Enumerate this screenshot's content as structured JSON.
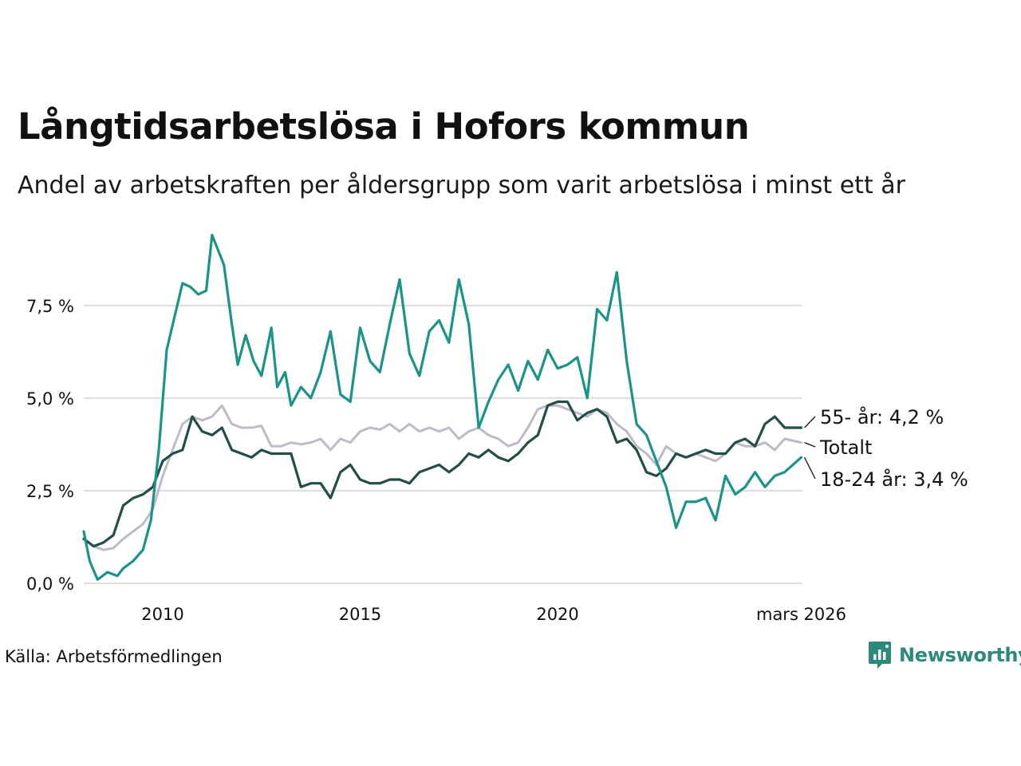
{
  "title": "Långtidsarbetslösa i Hofors kommun",
  "subtitle": "Andel av arbetskraften per åldersgrupp som varit arbetslösa i minst ett år",
  "source": "Källa: Arbetsförmedlingen",
  "brand": {
    "name": "Newsworthy",
    "icon": "newsworthy-logo-icon",
    "color": "#2c8a7a"
  },
  "chart_data": {
    "type": "line",
    "title": "Långtidsarbetslösa i Hofors kommun",
    "xlabel": "",
    "ylabel": "",
    "x_range": [
      2008.0,
      2026.2
    ],
    "ylim": [
      0,
      9.5
    ],
    "y_ticks": [
      0,
      2.5,
      5,
      7.5
    ],
    "y_tick_labels": [
      "0,0 %",
      "2,5 %",
      "5,0 %",
      "7,5 %"
    ],
    "x_ticks": [
      2010,
      2015,
      2020,
      2026.17
    ],
    "x_tick_labels": [
      "2010",
      "2015",
      "2020",
      "mars 2026"
    ],
    "grid": true,
    "series": [
      {
        "name": "Totalt",
        "label": "Totalt",
        "color": "#bdbbc8",
        "points": [
          [
            2008.0,
            1.2
          ],
          [
            2008.25,
            1.0
          ],
          [
            2008.5,
            0.9
          ],
          [
            2008.75,
            0.95
          ],
          [
            2009.0,
            1.2
          ],
          [
            2009.25,
            1.4
          ],
          [
            2009.5,
            1.6
          ],
          [
            2009.75,
            2.0
          ],
          [
            2010.0,
            2.9
          ],
          [
            2010.25,
            3.6
          ],
          [
            2010.5,
            4.3
          ],
          [
            2010.75,
            4.5
          ],
          [
            2011.0,
            4.4
          ],
          [
            2011.25,
            4.5
          ],
          [
            2011.5,
            4.8
          ],
          [
            2011.75,
            4.3
          ],
          [
            2012.0,
            4.2
          ],
          [
            2012.25,
            4.2
          ],
          [
            2012.5,
            4.25
          ],
          [
            2012.75,
            3.7
          ],
          [
            2013.0,
            3.7
          ],
          [
            2013.25,
            3.8
          ],
          [
            2013.5,
            3.75
          ],
          [
            2013.75,
            3.8
          ],
          [
            2014.0,
            3.9
          ],
          [
            2014.25,
            3.6
          ],
          [
            2014.5,
            3.9
          ],
          [
            2014.75,
            3.8
          ],
          [
            2015.0,
            4.1
          ],
          [
            2015.25,
            4.2
          ],
          [
            2015.5,
            4.15
          ],
          [
            2015.75,
            4.3
          ],
          [
            2016.0,
            4.1
          ],
          [
            2016.25,
            4.3
          ],
          [
            2016.5,
            4.1
          ],
          [
            2016.75,
            4.2
          ],
          [
            2017.0,
            4.1
          ],
          [
            2017.25,
            4.2
          ],
          [
            2017.5,
            3.9
          ],
          [
            2017.75,
            4.1
          ],
          [
            2018.0,
            4.2
          ],
          [
            2018.25,
            4.0
          ],
          [
            2018.5,
            3.9
          ],
          [
            2018.75,
            3.7
          ],
          [
            2019.0,
            3.8
          ],
          [
            2019.25,
            4.2
          ],
          [
            2019.5,
            4.7
          ],
          [
            2019.75,
            4.8
          ],
          [
            2020.0,
            4.8
          ],
          [
            2020.25,
            4.7
          ],
          [
            2020.5,
            4.6
          ],
          [
            2020.75,
            4.5
          ],
          [
            2021.0,
            4.7
          ],
          [
            2021.25,
            4.6
          ],
          [
            2021.5,
            4.3
          ],
          [
            2021.75,
            4.1
          ],
          [
            2022.0,
            3.7
          ],
          [
            2022.25,
            3.5
          ],
          [
            2022.5,
            3.2
          ],
          [
            2022.75,
            3.7
          ],
          [
            2023.0,
            3.5
          ],
          [
            2023.25,
            3.4
          ],
          [
            2023.5,
            3.5
          ],
          [
            2023.75,
            3.4
          ],
          [
            2024.0,
            3.3
          ],
          [
            2024.25,
            3.5
          ],
          [
            2024.5,
            3.8
          ],
          [
            2024.75,
            3.7
          ],
          [
            2025.0,
            3.7
          ],
          [
            2025.25,
            3.8
          ],
          [
            2025.5,
            3.6
          ],
          [
            2025.75,
            3.9
          ],
          [
            2026.17,
            3.8
          ]
        ]
      },
      {
        "name": "55- år",
        "label": "55- år: 4,2 %",
        "color": "#234d47",
        "points": [
          [
            2008.0,
            1.2
          ],
          [
            2008.25,
            1.0
          ],
          [
            2008.5,
            1.1
          ],
          [
            2008.75,
            1.3
          ],
          [
            2009.0,
            2.1
          ],
          [
            2009.25,
            2.3
          ],
          [
            2009.5,
            2.4
          ],
          [
            2009.75,
            2.6
          ],
          [
            2010.0,
            3.3
          ],
          [
            2010.25,
            3.5
          ],
          [
            2010.5,
            3.6
          ],
          [
            2010.75,
            4.5
          ],
          [
            2011.0,
            4.1
          ],
          [
            2011.25,
            4.0
          ],
          [
            2011.5,
            4.2
          ],
          [
            2011.75,
            3.6
          ],
          [
            2012.0,
            3.5
          ],
          [
            2012.25,
            3.4
          ],
          [
            2012.5,
            3.6
          ],
          [
            2012.75,
            3.5
          ],
          [
            2013.0,
            3.5
          ],
          [
            2013.25,
            3.5
          ],
          [
            2013.5,
            2.6
          ],
          [
            2013.75,
            2.7
          ],
          [
            2014.0,
            2.7
          ],
          [
            2014.25,
            2.3
          ],
          [
            2014.5,
            3.0
          ],
          [
            2014.75,
            3.2
          ],
          [
            2015.0,
            2.8
          ],
          [
            2015.25,
            2.7
          ],
          [
            2015.5,
            2.7
          ],
          [
            2015.75,
            2.8
          ],
          [
            2016.0,
            2.8
          ],
          [
            2016.25,
            2.7
          ],
          [
            2016.5,
            3.0
          ],
          [
            2016.75,
            3.1
          ],
          [
            2017.0,
            3.2
          ],
          [
            2017.25,
            3.0
          ],
          [
            2017.5,
            3.2
          ],
          [
            2017.75,
            3.5
          ],
          [
            2018.0,
            3.4
          ],
          [
            2018.25,
            3.6
          ],
          [
            2018.5,
            3.4
          ],
          [
            2018.75,
            3.3
          ],
          [
            2019.0,
            3.5
          ],
          [
            2019.25,
            3.8
          ],
          [
            2019.5,
            4.0
          ],
          [
            2019.75,
            4.8
          ],
          [
            2020.0,
            4.9
          ],
          [
            2020.25,
            4.9
          ],
          [
            2020.5,
            4.4
          ],
          [
            2020.75,
            4.6
          ],
          [
            2021.0,
            4.7
          ],
          [
            2021.25,
            4.5
          ],
          [
            2021.5,
            3.8
          ],
          [
            2021.75,
            3.9
          ],
          [
            2022.0,
            3.6
          ],
          [
            2022.25,
            3.0
          ],
          [
            2022.5,
            2.9
          ],
          [
            2022.75,
            3.1
          ],
          [
            2023.0,
            3.5
          ],
          [
            2023.25,
            3.4
          ],
          [
            2023.5,
            3.5
          ],
          [
            2023.75,
            3.6
          ],
          [
            2024.0,
            3.5
          ],
          [
            2024.25,
            3.5
          ],
          [
            2024.5,
            3.8
          ],
          [
            2024.75,
            3.9
          ],
          [
            2025.0,
            3.7
          ],
          [
            2025.25,
            4.3
          ],
          [
            2025.5,
            4.5
          ],
          [
            2025.75,
            4.2
          ],
          [
            2026.17,
            4.2
          ]
        ]
      },
      {
        "name": "18-24 år",
        "label": "18-24 år: 3,4 %",
        "color": "#1a9487",
        "points": [
          [
            2008.0,
            1.4
          ],
          [
            2008.15,
            0.6
          ],
          [
            2008.35,
            0.1
          ],
          [
            2008.6,
            0.3
          ],
          [
            2008.85,
            0.2
          ],
          [
            2009.0,
            0.4
          ],
          [
            2009.25,
            0.6
          ],
          [
            2009.5,
            0.9
          ],
          [
            2009.7,
            1.7
          ],
          [
            2009.9,
            3.6
          ],
          [
            2010.1,
            6.3
          ],
          [
            2010.3,
            7.2
          ],
          [
            2010.5,
            8.1
          ],
          [
            2010.7,
            8.0
          ],
          [
            2010.9,
            7.8
          ],
          [
            2011.1,
            7.9
          ],
          [
            2011.25,
            9.4
          ],
          [
            2011.4,
            9.0
          ],
          [
            2011.55,
            8.6
          ],
          [
            2011.75,
            7.0
          ],
          [
            2011.9,
            5.9
          ],
          [
            2012.1,
            6.7
          ],
          [
            2012.3,
            6.0
          ],
          [
            2012.5,
            5.6
          ],
          [
            2012.75,
            6.9
          ],
          [
            2012.9,
            5.3
          ],
          [
            2013.1,
            5.7
          ],
          [
            2013.25,
            4.8
          ],
          [
            2013.5,
            5.3
          ],
          [
            2013.75,
            5.0
          ],
          [
            2014.0,
            5.7
          ],
          [
            2014.25,
            6.8
          ],
          [
            2014.5,
            5.1
          ],
          [
            2014.75,
            4.9
          ],
          [
            2015.0,
            6.9
          ],
          [
            2015.25,
            6.0
          ],
          [
            2015.5,
            5.7
          ],
          [
            2015.75,
            7.0
          ],
          [
            2016.0,
            8.2
          ],
          [
            2016.25,
            6.2
          ],
          [
            2016.5,
            5.6
          ],
          [
            2016.75,
            6.8
          ],
          [
            2017.0,
            7.1
          ],
          [
            2017.25,
            6.5
          ],
          [
            2017.5,
            8.2
          ],
          [
            2017.75,
            7.0
          ],
          [
            2018.0,
            4.2
          ],
          [
            2018.25,
            4.9
          ],
          [
            2018.5,
            5.5
          ],
          [
            2018.75,
            5.9
          ],
          [
            2019.0,
            5.2
          ],
          [
            2019.25,
            6.0
          ],
          [
            2019.5,
            5.5
          ],
          [
            2019.75,
            6.3
          ],
          [
            2020.0,
            5.8
          ],
          [
            2020.25,
            5.9
          ],
          [
            2020.5,
            6.1
          ],
          [
            2020.75,
            5.0
          ],
          [
            2021.0,
            7.4
          ],
          [
            2021.25,
            7.1
          ],
          [
            2021.5,
            8.4
          ],
          [
            2021.75,
            6.0
          ],
          [
            2022.0,
            4.3
          ],
          [
            2022.25,
            4.0
          ],
          [
            2022.5,
            3.3
          ],
          [
            2022.75,
            2.6
          ],
          [
            2023.0,
            1.5
          ],
          [
            2023.25,
            2.2
          ],
          [
            2023.5,
            2.2
          ],
          [
            2023.75,
            2.3
          ],
          [
            2024.0,
            1.7
          ],
          [
            2024.25,
            2.9
          ],
          [
            2024.5,
            2.4
          ],
          [
            2024.75,
            2.6
          ],
          [
            2025.0,
            3.0
          ],
          [
            2025.25,
            2.6
          ],
          [
            2025.5,
            2.9
          ],
          [
            2025.75,
            3.0
          ],
          [
            2026.17,
            3.4
          ]
        ]
      }
    ]
  }
}
